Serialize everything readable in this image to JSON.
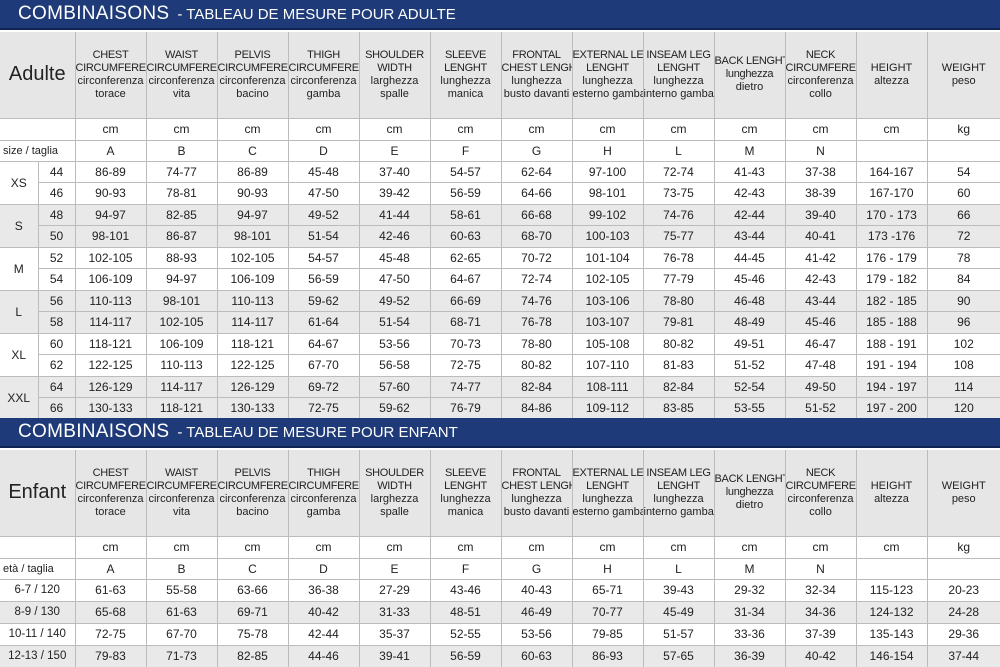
{
  "adult": {
    "title": "COMBINAISONS",
    "subtitle": "- TABLEAU DE MESURE POUR ADULTE",
    "label": "Adulte",
    "size_label": "size / taglia",
    "headers": [
      [
        "CHEST",
        "CIRCUMFERENCE",
        "circonferenza",
        "torace"
      ],
      [
        "WAIST",
        "CIRCUMFERENCE",
        "circonferenza",
        "vita"
      ],
      [
        "PELVIS",
        "CIRCUMFERENCE",
        "circonferenza",
        "bacino"
      ],
      [
        "THIGH",
        "CIRCUMFERENCE",
        "circonferenza",
        "gamba"
      ],
      [
        "SHOULDER",
        "WIDTH",
        "larghezza",
        "spalle"
      ],
      [
        "SLEEVE",
        "LENGHT",
        "lunghezza",
        "manica"
      ],
      [
        "FRONTAL",
        "CHEST LENGHT",
        "lunghezza",
        "busto davanti"
      ],
      [
        "EXTERNAL LEG",
        "LENGHT",
        "lunghezza",
        "esterno gamba"
      ],
      [
        "INSEAM LEG",
        "LENGHT",
        "lunghezza",
        "interno gamba"
      ],
      [
        "BACK LENGHT",
        "lunghezza",
        "dietro"
      ],
      [
        "NECK",
        "CIRCUMFERENCE",
        "circonferenza",
        "collo"
      ],
      [
        "HEIGHT",
        "altezza"
      ],
      [
        "WEIGHT",
        "peso"
      ]
    ],
    "units": [
      "cm",
      "cm",
      "cm",
      "cm",
      "cm",
      "cm",
      "cm",
      "cm",
      "cm",
      "cm",
      "cm",
      "cm",
      "kg"
    ],
    "letters": [
      "A",
      "B",
      "C",
      "D",
      "E",
      "F",
      "G",
      "H",
      "L",
      "M",
      "N",
      "",
      ""
    ],
    "groups": [
      {
        "size": "XS",
        "rows": [
          {
            "n": "44",
            "v": [
              "86-89",
              "74-77",
              "86-89",
              "45-48",
              "37-40",
              "54-57",
              "62-64",
              "97-100",
              "72-74",
              "41-43",
              "37-38",
              "164-167",
              "54"
            ]
          },
          {
            "n": "46",
            "v": [
              "90-93",
              "78-81",
              "90-93",
              "47-50",
              "39-42",
              "56-59",
              "64-66",
              "98-101",
              "73-75",
              "42-43",
              "38-39",
              "167-170",
              "60"
            ]
          }
        ]
      },
      {
        "size": "S",
        "rows": [
          {
            "n": "48",
            "v": [
              "94-97",
              "82-85",
              "94-97",
              "49-52",
              "41-44",
              "58-61",
              "66-68",
              "99-102",
              "74-76",
              "42-44",
              "39-40",
              "170 - 173",
              "66"
            ]
          },
          {
            "n": "50",
            "v": [
              "98-101",
              "86-87",
              "98-101",
              "51-54",
              "42-46",
              "60-63",
              "68-70",
              "100-103",
              "75-77",
              "43-44",
              "40-41",
              "173 -176",
              "72"
            ]
          }
        ]
      },
      {
        "size": "M",
        "rows": [
          {
            "n": "52",
            "v": [
              "102-105",
              "88-93",
              "102-105",
              "54-57",
              "45-48",
              "62-65",
              "70-72",
              "101-104",
              "76-78",
              "44-45",
              "41-42",
              "176 - 179",
              "78"
            ]
          },
          {
            "n": "54",
            "v": [
              "106-109",
              "94-97",
              "106-109",
              "56-59",
              "47-50",
              "64-67",
              "72-74",
              "102-105",
              "77-79",
              "45-46",
              "42-43",
              "179 - 182",
              "84"
            ]
          }
        ]
      },
      {
        "size": "L",
        "rows": [
          {
            "n": "56",
            "v": [
              "110-113",
              "98-101",
              "110-113",
              "59-62",
              "49-52",
              "66-69",
              "74-76",
              "103-106",
              "78-80",
              "46-48",
              "43-44",
              "182 - 185",
              "90"
            ]
          },
          {
            "n": "58",
            "v": [
              "114-117",
              "102-105",
              "114-117",
              "61-64",
              "51-54",
              "68-71",
              "76-78",
              "103-107",
              "79-81",
              "48-49",
              "45-46",
              "185 - 188",
              "96"
            ]
          }
        ]
      },
      {
        "size": "XL",
        "rows": [
          {
            "n": "60",
            "v": [
              "118-121",
              "106-109",
              "118-121",
              "64-67",
              "53-56",
              "70-73",
              "78-80",
              "105-108",
              "80-82",
              "49-51",
              "46-47",
              "188 - 191",
              "102"
            ]
          },
          {
            "n": "62",
            "v": [
              "122-125",
              "110-113",
              "122-125",
              "67-70",
              "56-58",
              "72-75",
              "80-82",
              "107-110",
              "81-83",
              "51-52",
              "47-48",
              "191 - 194",
              "108"
            ]
          }
        ]
      },
      {
        "size": "XXL",
        "rows": [
          {
            "n": "64",
            "v": [
              "126-129",
              "114-117",
              "126-129",
              "69-72",
              "57-60",
              "74-77",
              "82-84",
              "108-111",
              "82-84",
              "52-54",
              "49-50",
              "194 - 197",
              "114"
            ]
          },
          {
            "n": "66",
            "v": [
              "130-133",
              "118-121",
              "130-133",
              "72-75",
              "59-62",
              "76-79",
              "84-86",
              "109-112",
              "83-85",
              "53-55",
              "51-52",
              "197 - 200",
              "120"
            ]
          }
        ]
      }
    ]
  },
  "child": {
    "title": "COMBINAISONS",
    "subtitle": "- TABLEAU DE MESURE POUR ENFANT",
    "label": "Enfant",
    "size_label": "età / taglia",
    "units": [
      "cm",
      "cm",
      "cm",
      "cm",
      "cm",
      "cm",
      "cm",
      "cm",
      "cm",
      "cm",
      "cm",
      "cm",
      "kg"
    ],
    "letters": [
      "A",
      "B",
      "C",
      "D",
      "E",
      "F",
      "G",
      "H",
      "L",
      "M",
      "N",
      "",
      ""
    ],
    "rows": [
      {
        "n": "6-7 / 120",
        "v": [
          "61-63",
          "55-58",
          "63-66",
          "36-38",
          "27-29",
          "43-46",
          "40-43",
          "65-71",
          "39-43",
          "29-32",
          "32-34",
          "115-123",
          "20-23"
        ]
      },
      {
        "n": "8-9 / 130",
        "v": [
          "65-68",
          "61-63",
          "69-71",
          "40-42",
          "31-33",
          "48-51",
          "46-49",
          "70-77",
          "45-49",
          "31-34",
          "34-36",
          "124-132",
          "24-28"
        ]
      },
      {
        "n": "10-11 / 140",
        "v": [
          "72-75",
          "67-70",
          "75-78",
          "42-44",
          "35-37",
          "52-55",
          "53-56",
          "79-85",
          "51-57",
          "33-36",
          "37-39",
          "135-143",
          "29-36"
        ]
      },
      {
        "n": "12-13 / 150",
        "v": [
          "79-83",
          "71-73",
          "82-85",
          "44-46",
          "39-41",
          "56-59",
          "60-63",
          "86-93",
          "57-65",
          "36-39",
          "40-42",
          "146-154",
          "37-44"
        ]
      }
    ]
  }
}
